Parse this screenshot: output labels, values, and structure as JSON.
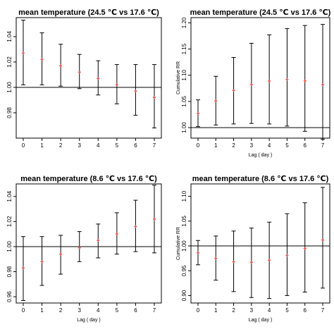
{
  "colors": {
    "ci_line": "#000000",
    "point": "#e8504a",
    "axis": "#000000",
    "ref_line": "#000000"
  },
  "chart_data": [
    {
      "type": "scatter",
      "title": "mean temperature (24.5 ℃ vs 17.6 ℃)",
      "xlabel": "",
      "ylabel": "",
      "x": [
        0,
        1,
        2,
        3,
        4,
        5,
        6,
        7
      ],
      "x_ticks": [
        "0",
        "1",
        "2",
        "3",
        "4",
        "5",
        "6",
        "7"
      ],
      "y": [
        1.027,
        1.022,
        1.017,
        1.012,
        1.007,
        1.002,
        0.997,
        0.992
      ],
      "lower": [
        1.002,
        1.002,
        1.001,
        0.999,
        0.994,
        0.987,
        0.978,
        0.968
      ],
      "upper": [
        1.053,
        1.043,
        1.034,
        1.026,
        1.021,
        1.018,
        1.018,
        1.018
      ],
      "ylim": [
        0.96,
        1.055
      ],
      "y_ticks": [
        "0.98",
        "1.00",
        "1.02",
        "1.04"
      ],
      "reference_y": 1.0,
      "grid": false
    },
    {
      "type": "scatter",
      "title": "mean temperature (24.5 ℃ vs 17.6 ℃)",
      "xlabel": "Lag ( day )",
      "ylabel": "Cumulative RR",
      "x": [
        0,
        1,
        2,
        3,
        4,
        5,
        6,
        7
      ],
      "x_ticks": [
        "0",
        "1",
        "2",
        "3",
        "4",
        "5",
        "6",
        "7"
      ],
      "y": [
        1.027,
        1.051,
        1.071,
        1.082,
        1.089,
        1.092,
        1.089,
        1.082
      ],
      "lower": [
        1.002,
        1.005,
        1.007,
        1.008,
        1.007,
        1.003,
        0.993,
        0.978
      ],
      "upper": [
        1.053,
        1.098,
        1.134,
        1.161,
        1.177,
        1.189,
        1.195,
        1.197
      ],
      "ylim": [
        0.98,
        1.21
      ],
      "y_ticks": [
        "1.00",
        "1.05",
        "1.10",
        "1.15",
        "1.20"
      ],
      "reference_y": 1.0,
      "grid": false
    },
    {
      "type": "scatter",
      "title": "mean temperature (8.6 ℃ vs 17.6 ℃)",
      "xlabel": "Lag ( day )",
      "ylabel": "",
      "x": [
        0,
        1,
        2,
        3,
        4,
        5,
        6,
        7
      ],
      "x_ticks": [
        "0",
        "1",
        "2",
        "3",
        "4",
        "5",
        "6",
        "7"
      ],
      "y": [
        0.983,
        0.988,
        0.994,
        0.999,
        1.005,
        1.01,
        1.016,
        1.022
      ],
      "lower": [
        0.957,
        0.969,
        0.978,
        0.988,
        0.991,
        0.994,
        0.996,
        0.995
      ],
      "upper": [
        1.008,
        1.008,
        1.009,
        1.012,
        1.018,
        1.027,
        1.037,
        1.049
      ],
      "ylim": [
        0.955,
        1.05
      ],
      "y_ticks": [
        "0.96",
        "0.98",
        "1.00",
        "1.02",
        "1.04"
      ],
      "reference_y": 1.0,
      "grid": false
    },
    {
      "type": "scatter",
      "title": "mean temperature (8.6 ℃ vs 17.6 ℃)",
      "xlabel": "Lag ( day )",
      "ylabel": "Cumulative RR",
      "x": [
        0,
        1,
        2,
        3,
        4,
        5,
        6,
        7
      ],
      "x_ticks": [
        "0",
        "1",
        "2",
        "3",
        "4",
        "5",
        "6",
        "7"
      ],
      "y": [
        0.986,
        0.975,
        0.968,
        0.967,
        0.971,
        0.981,
        0.995,
        1.012
      ],
      "lower": [
        0.962,
        0.931,
        0.908,
        0.896,
        0.894,
        0.9,
        0.907,
        0.915
      ],
      "upper": [
        1.011,
        1.02,
        1.03,
        1.036,
        1.048,
        1.065,
        1.087,
        1.118
      ],
      "ylim": [
        0.885,
        1.125
      ],
      "y_ticks": [
        "0.90",
        "0.95",
        "1.00",
        "1.05",
        "1.10"
      ],
      "reference_y": 1.0,
      "grid": false
    }
  ]
}
